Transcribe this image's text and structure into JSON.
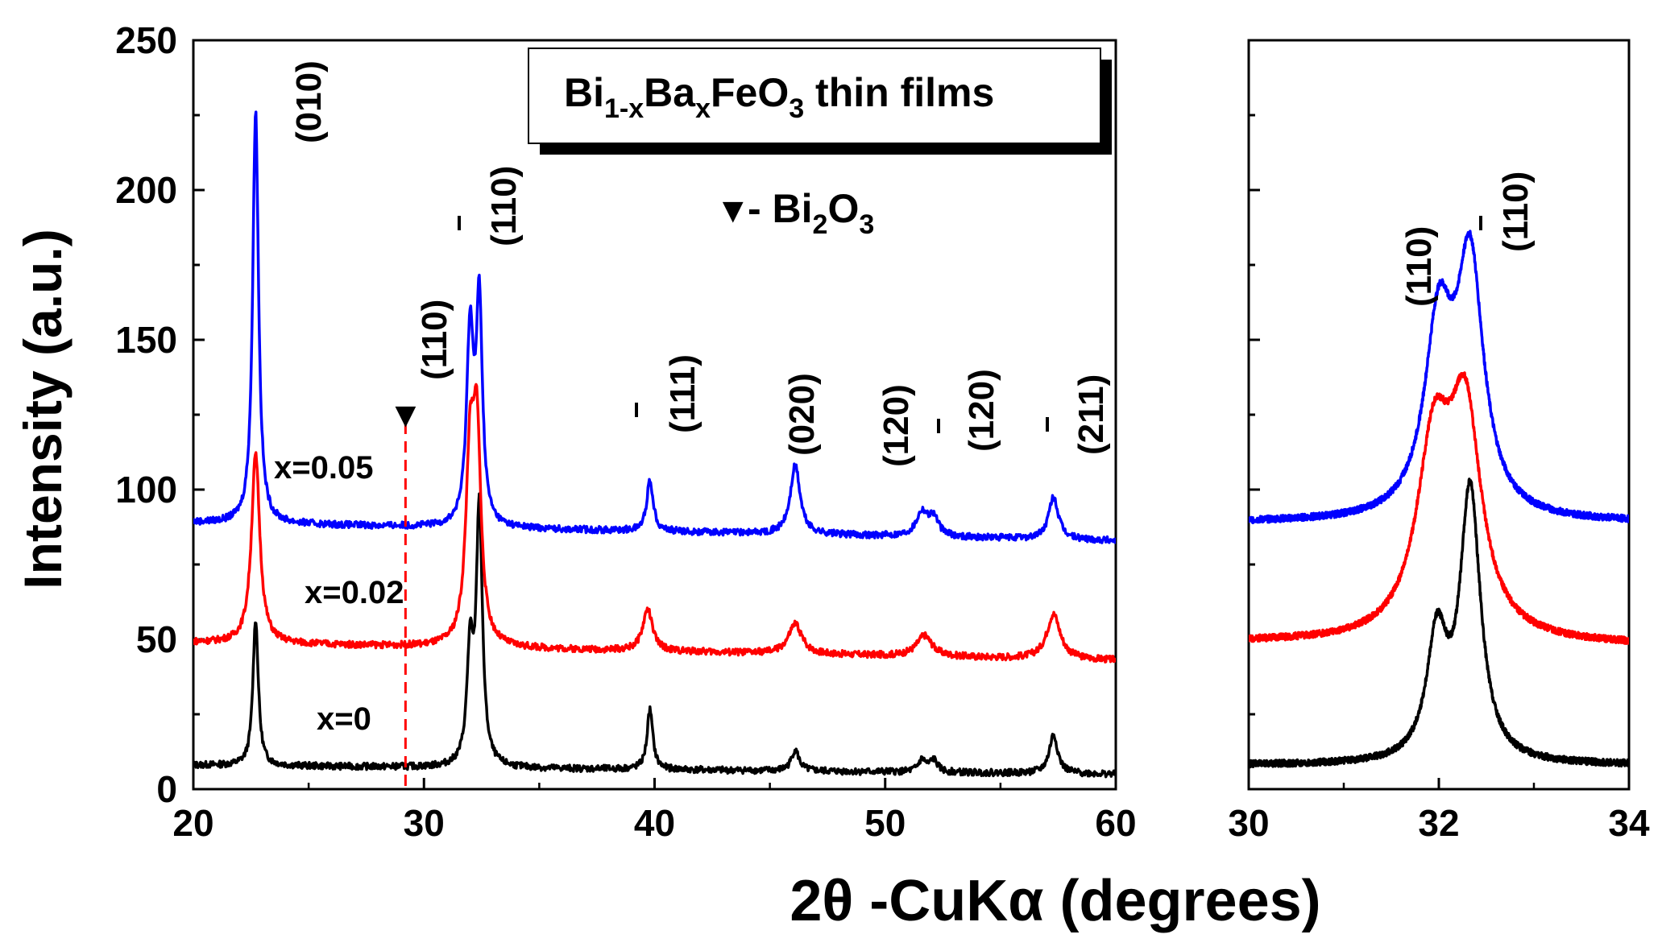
{
  "chart_data": [
    {
      "id": "main",
      "type": "line",
      "title": "Bi1-xBaxFeO3 thin films",
      "title_parts": {
        "a": "Bi",
        "b": "1-x",
        "c": "Ba",
        "d": "x",
        "e": "FeO",
        "f": "3",
        "g": " thin films"
      },
      "xlabel": "2θ -CuKα (degrees)",
      "ylabel": "Intensity (a.u.)",
      "xlim": [
        20,
        60
      ],
      "ylim": [
        0,
        250
      ],
      "xticks": [
        "20",
        "30",
        "40",
        "50",
        "60"
      ],
      "yticks": [
        "0",
        "50",
        "100",
        "150",
        "200",
        "250"
      ],
      "series": [
        {
          "name": "x=0",
          "color": "#000000",
          "baseline": 8,
          "end_baseline": 5,
          "peaks": [
            [
              22.7,
              49,
              0.14
            ],
            [
              32.0,
              37,
              0.16
            ],
            [
              32.4,
              86,
              0.16
            ],
            [
              39.8,
              20,
              0.15
            ],
            [
              46.1,
              7,
              0.2
            ],
            [
              51.6,
              4,
              0.2
            ],
            [
              52.1,
              4,
              0.2
            ],
            [
              57.3,
              13,
              0.22
            ]
          ]
        },
        {
          "name": "x=0.02",
          "color": "#ff0000",
          "baseline": 49,
          "end_baseline": 43,
          "peaks": [
            [
              22.7,
              63,
              0.22
            ],
            [
              32.0,
              60,
              0.22
            ],
            [
              32.3,
              65,
              0.2
            ],
            [
              39.7,
              14,
              0.25
            ],
            [
              46.1,
              10,
              0.35
            ],
            [
              51.7,
              7,
              0.4
            ],
            [
              57.3,
              15,
              0.35
            ]
          ]
        },
        {
          "name": "x=0.05",
          "color": "#0000ff",
          "baseline": 89,
          "end_baseline": 83,
          "peaks": [
            [
              22.7,
              138,
              0.15
            ],
            [
              32.0,
              64,
              0.18
            ],
            [
              32.4,
              73,
              0.16
            ],
            [
              39.8,
              17,
              0.17
            ],
            [
              46.1,
              23,
              0.25
            ],
            [
              51.6,
              8,
              0.3
            ],
            [
              52.1,
              6,
              0.25
            ],
            [
              57.3,
              14,
              0.25
            ]
          ]
        }
      ],
      "series_labels": [
        "x=0.05",
        "x=0.02",
        "x=0"
      ],
      "legend_marker": "▼",
      "legend_text": {
        "a": " - Bi",
        "b": "2",
        "c": "O",
        "d": "3"
      },
      "bi2o3_line_x": 29.2,
      "peak_labels": [
        "(010)",
        "(110)",
        "(110)",
        "(111)",
        "(020)",
        "(120)",
        "(120)",
        "(211)"
      ]
    },
    {
      "id": "inset",
      "type": "line",
      "xlim": [
        30,
        34
      ],
      "ylim": [
        0,
        250
      ],
      "xticks": [
        "30",
        "32",
        "34"
      ],
      "series": [
        {
          "name": "x=0",
          "color": "#000000",
          "baseline": 8,
          "end_baseline": 8,
          "peaks": [
            [
              31.98,
              40,
              0.13
            ],
            [
              32.33,
              90,
              0.13
            ]
          ]
        },
        {
          "name": "x=0.02",
          "color": "#ff0000",
          "baseline": 49,
          "end_baseline": 48,
          "peaks": [
            [
              31.95,
              62,
              0.22
            ],
            [
              32.28,
              70,
              0.2
            ]
          ]
        },
        {
          "name": "x=0.05",
          "color": "#0000ff",
          "baseline": 89,
          "end_baseline": 89,
          "peaks": [
            [
              32.0,
              62,
              0.18
            ],
            [
              32.33,
              82,
              0.17
            ]
          ]
        }
      ],
      "peak_labels": [
        "(110)",
        "(110)"
      ]
    }
  ]
}
